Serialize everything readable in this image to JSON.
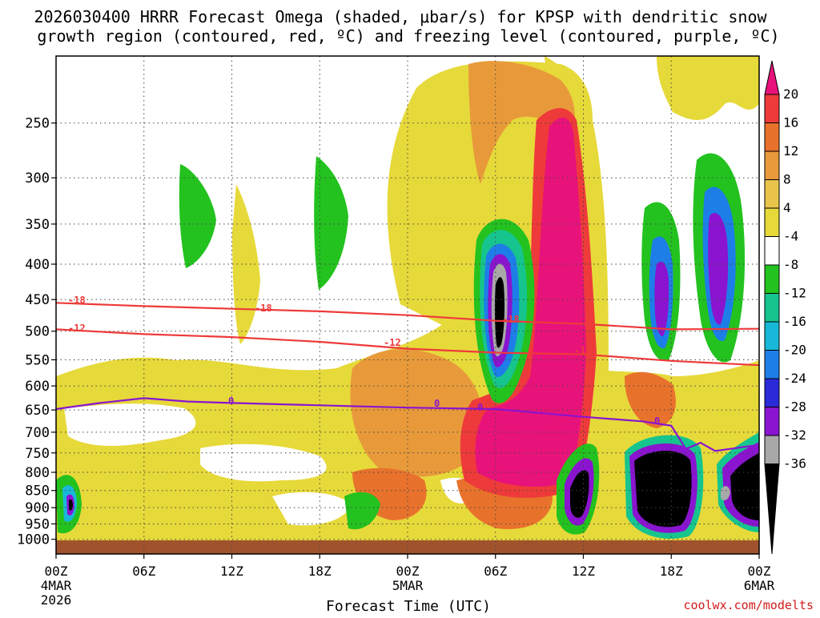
{
  "chart_data": {
    "type": "heatmap",
    "title_line1": "2026030400 HRRR Forecast Omega (shaded, μbar/s) for KPSP with dendritic snow",
    "title_line2": "growth region (contoured, red, ºC) and freezing level (contoured, purple, ºC)",
    "xlabel": "Forecast Time (UTC)",
    "ylabel": "",
    "credit": "coolwx.com/modelts",
    "x_hours_range": [
      0,
      48
    ],
    "y_pressure_range": [
      200,
      1050
    ],
    "x_ticks": [
      {
        "hour": 0,
        "label": "00Z",
        "date": "4MAR",
        "year": "2026"
      },
      {
        "hour": 6,
        "label": "06Z",
        "date": "",
        "year": ""
      },
      {
        "hour": 12,
        "label": "12Z",
        "date": "",
        "year": ""
      },
      {
        "hour": 18,
        "label": "18Z",
        "date": "",
        "year": ""
      },
      {
        "hour": 24,
        "label": "00Z",
        "date": "5MAR",
        "year": ""
      },
      {
        "hour": 30,
        "label": "06Z",
        "date": "",
        "year": ""
      },
      {
        "hour": 36,
        "label": "12Z",
        "date": "",
        "year": ""
      },
      {
        "hour": 42,
        "label": "18Z",
        "date": "",
        "year": ""
      },
      {
        "hour": 48,
        "label": "00Z",
        "date": "6MAR",
        "year": ""
      }
    ],
    "y_ticks": [
      250,
      300,
      350,
      400,
      450,
      500,
      550,
      600,
      650,
      700,
      750,
      800,
      850,
      900,
      950,
      1000
    ],
    "colorbar": {
      "labels": [
        "20",
        "16",
        "12",
        "8",
        "4",
        "-4",
        "-8",
        "-12",
        "-16",
        "-20",
        "-24",
        "-28",
        "-32",
        "-36"
      ],
      "colors": [
        "#e8137a",
        "#ee3a3a",
        "#e8722c",
        "#e89a3a",
        "#e8c44a",
        "#e6d93a",
        "#ffffff",
        "#23c21f",
        "#16c48e",
        "#18b8d8",
        "#1e7ee8",
        "#2a2ad8",
        "#8a14d0",
        "#a8a8a8",
        "#000000"
      ]
    },
    "omega_features": [
      {
        "type": "updraft",
        "hour": 1,
        "pressure": 900,
        "min_value": -28
      },
      {
        "type": "updraft",
        "hour": 30,
        "pressure": 430,
        "min_value": -36
      },
      {
        "type": "subsidence",
        "hour": 34,
        "pressure": 500,
        "max_value": 20
      },
      {
        "type": "updraft",
        "hour": 35.5,
        "pressure": 850,
        "min_value": -36
      },
      {
        "type": "updraft",
        "hour": 41.5,
        "pressure": 890,
        "min_value": -36
      },
      {
        "type": "updraft",
        "hour": 47.5,
        "pressure": 870,
        "min_value": -36
      },
      {
        "type": "updraft",
        "hour": 41.8,
        "pressure": 450,
        "min_value": -24
      },
      {
        "type": "updraft",
        "hour": 45.5,
        "pressure": 400,
        "min_value": -28
      }
    ],
    "dgz_contours": [
      {
        "level": "-18",
        "hours": [
          0,
          6,
          12,
          18,
          24,
          30,
          36,
          42,
          48
        ],
        "pressure": [
          455,
          460,
          464,
          468,
          474,
          483,
          488,
          497,
          496
        ]
      },
      {
        "level": "-12",
        "hours": [
          0,
          6,
          12,
          18,
          24,
          30,
          36,
          42,
          48
        ],
        "pressure": [
          497,
          505,
          510,
          518,
          530,
          537,
          540,
          552,
          560
        ]
      }
    ],
    "freezing_level": {
      "level": "0",
      "hours": [
        0,
        3,
        6,
        9,
        12,
        18,
        24,
        30,
        36,
        40,
        42,
        43,
        44,
        45,
        46,
        48
      ],
      "pressure": [
        648,
        635,
        625,
        632,
        635,
        640,
        645,
        648,
        665,
        675,
        685,
        740,
        725,
        745,
        740,
        730
      ]
    },
    "contour_labels": [
      "-18",
      "-18",
      "-18",
      "-12",
      "-12",
      "-12",
      "0",
      "0",
      "0",
      "0"
    ]
  }
}
